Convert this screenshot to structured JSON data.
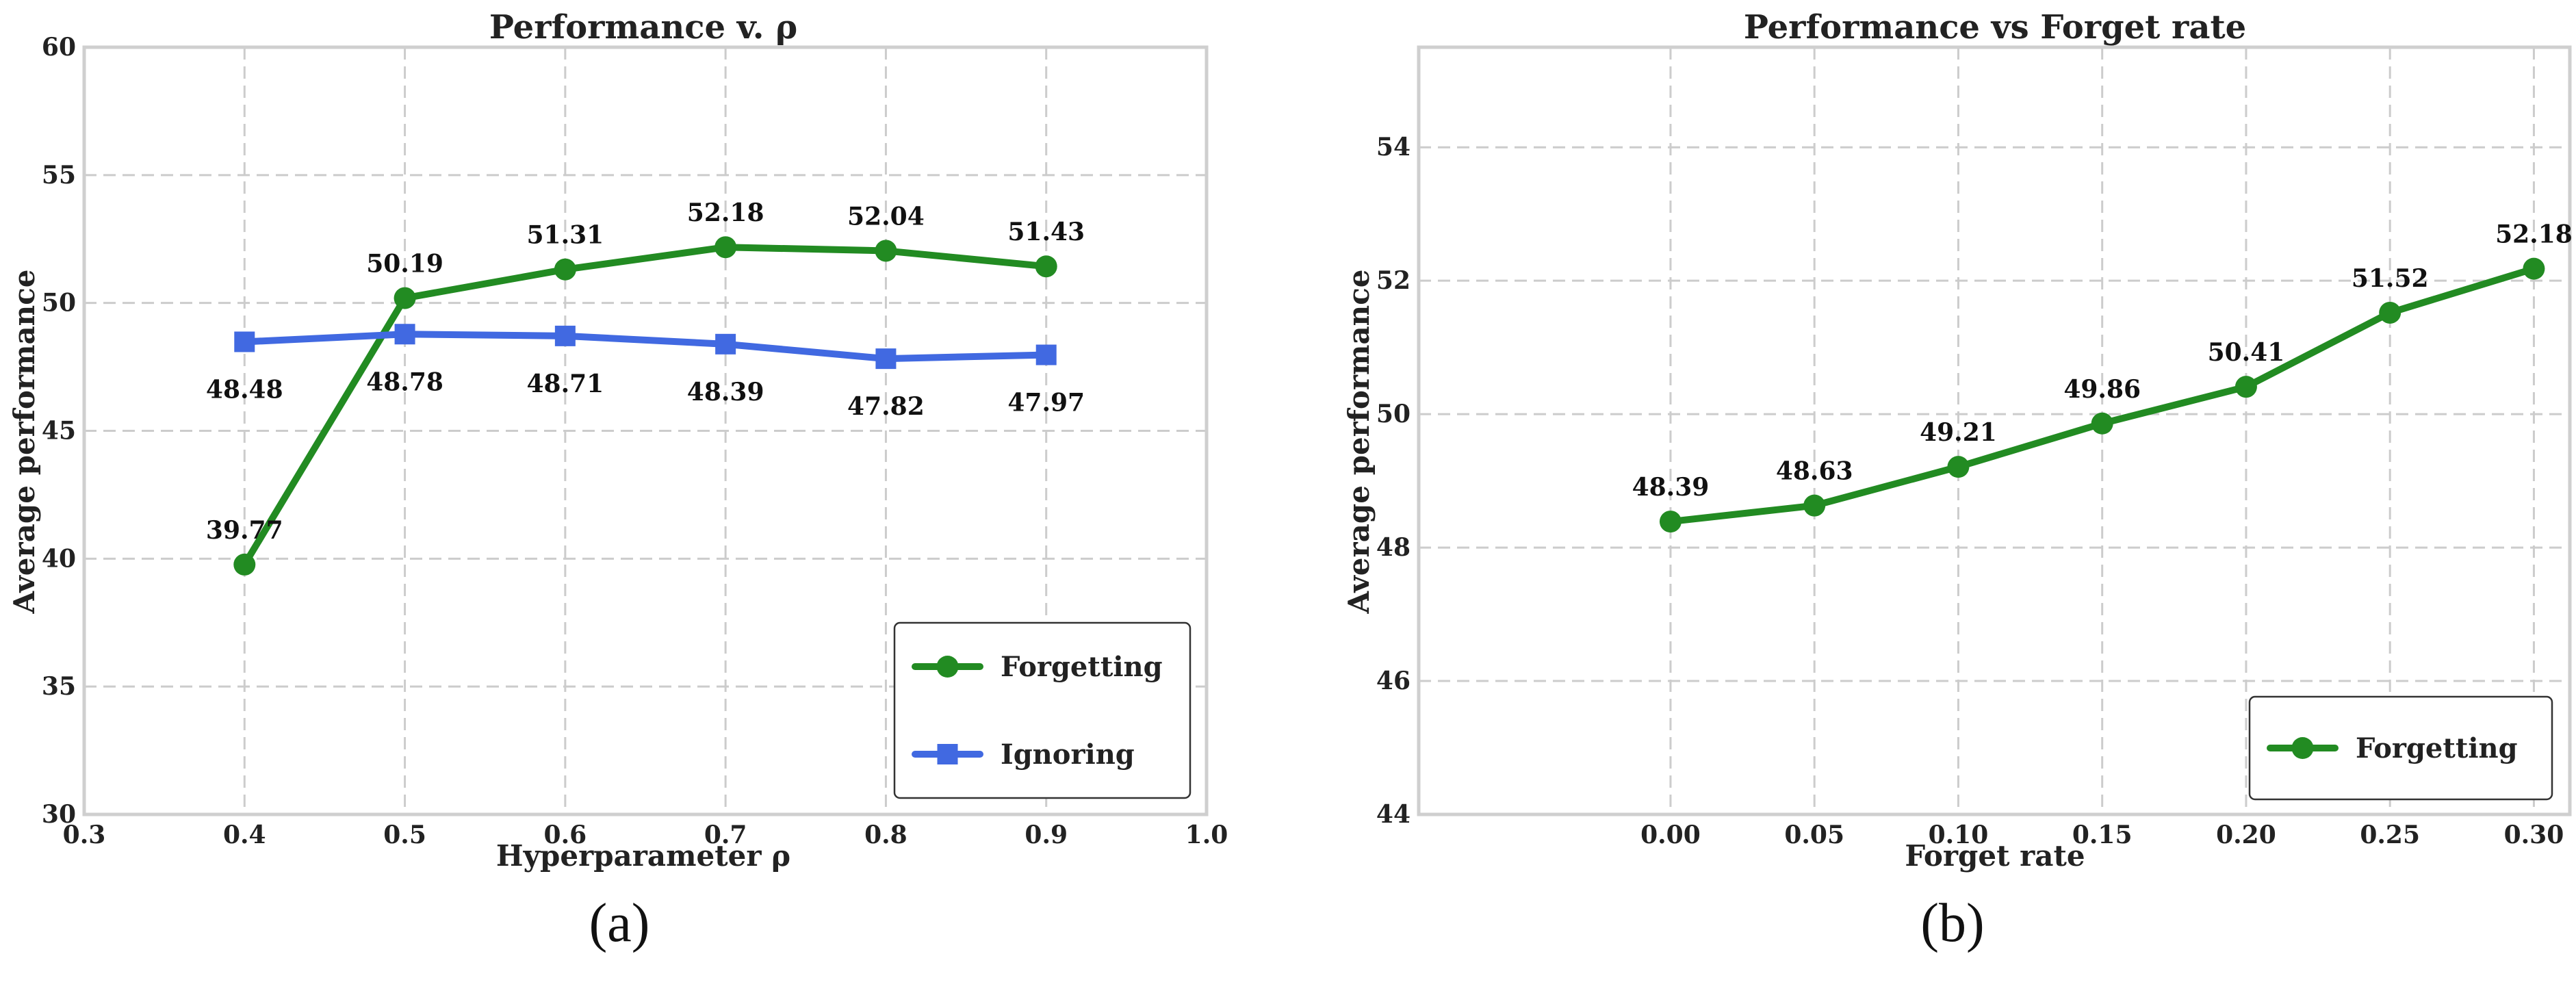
{
  "panel_labels": [
    "(a)",
    "(b)"
  ],
  "chart_data": [
    {
      "type": "line",
      "title": "Performance v. ρ",
      "xlabel": "Hyperparameter ρ",
      "ylabel": "Average performance",
      "xlim": [
        0.3,
        1.0
      ],
      "ylim": [
        30,
        60
      ],
      "xticks": [
        "0.3",
        "0.4",
        "0.5",
        "0.6",
        "0.7",
        "0.8",
        "0.9",
        "1.0"
      ],
      "yticks": [
        "30",
        "35",
        "40",
        "45",
        "50",
        "55",
        "60"
      ],
      "grid": true,
      "legend_position": "bottom-right",
      "x": [
        0.4,
        0.5,
        0.6,
        0.7,
        0.8,
        0.9
      ],
      "series": [
        {
          "name": "Forgetting",
          "marker": "circle",
          "color": "#228B22",
          "values": [
            39.77,
            50.19,
            51.31,
            52.18,
            52.04,
            51.43
          ],
          "labels": [
            "39.77",
            "50.19",
            "51.31",
            "52.18",
            "52.04",
            "51.43"
          ],
          "label_side": "above"
        },
        {
          "name": "Ignoring",
          "marker": "square",
          "color": "#4169E1",
          "values": [
            48.48,
            48.78,
            48.71,
            48.39,
            47.82,
            47.97
          ],
          "labels": [
            "48.48",
            "48.78",
            "48.71",
            "48.39",
            "47.82",
            "47.97"
          ],
          "label_side": "below"
        }
      ]
    },
    {
      "type": "line",
      "title": "Performance vs Forget rate",
      "xlabel": "Forget rate",
      "ylabel": "Average performance",
      "xlim": [
        -0.0875,
        0.3125
      ],
      "ylim": [
        44,
        55.5
      ],
      "xticks": [
        "0.00",
        "0.05",
        "0.10",
        "0.15",
        "0.20",
        "0.25",
        "0.30"
      ],
      "yticks": [
        "44",
        "46",
        "48",
        "50",
        "52",
        "54"
      ],
      "grid": true,
      "legend_position": "bottom-right",
      "x": [
        0.0,
        0.05,
        0.1,
        0.15,
        0.2,
        0.25,
        0.3
      ],
      "series": [
        {
          "name": "Forgetting",
          "marker": "circle",
          "color": "#228B22",
          "values": [
            48.39,
            48.63,
            49.21,
            49.86,
            50.41,
            51.52,
            52.18
          ],
          "labels": [
            "48.39",
            "48.63",
            "49.21",
            "49.86",
            "50.41",
            "51.52",
            "52.18"
          ],
          "label_side": "above"
        }
      ]
    }
  ]
}
